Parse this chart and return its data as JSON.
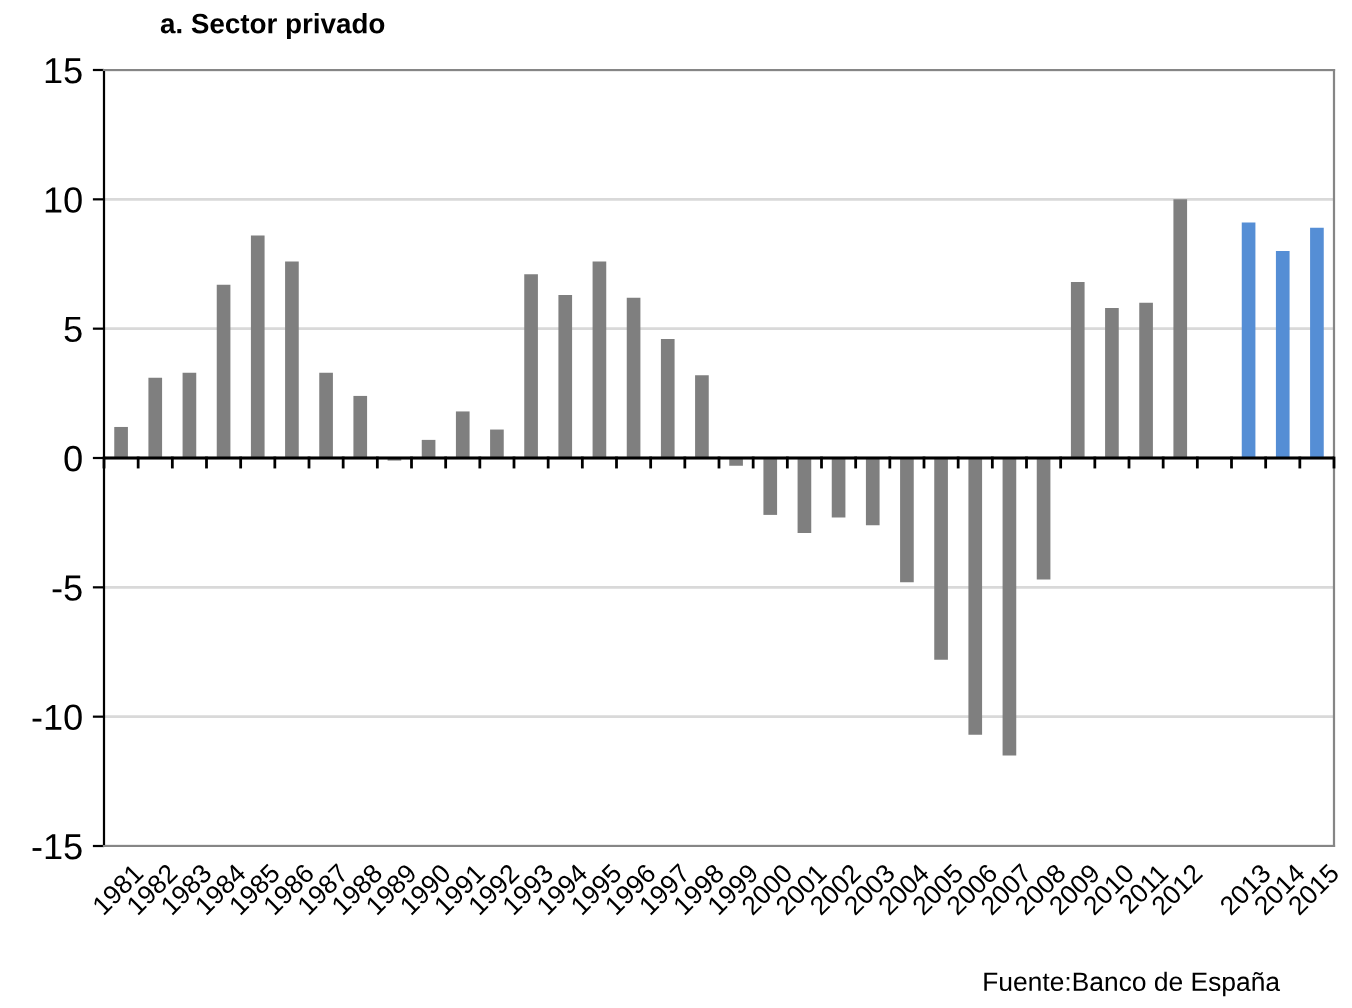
{
  "chart_data": {
    "type": "bar",
    "title": "a. Sector privado",
    "categories": [
      "1981",
      "1982",
      "1983",
      "1984",
      "1985",
      "1986",
      "1987",
      "1988",
      "1989",
      "1990",
      "1991",
      "1992",
      "1993",
      "1994",
      "1995",
      "1996",
      "1997",
      "1998",
      "1999",
      "2000",
      "2001",
      "2002",
      "2003",
      "2004",
      "2005",
      "2006",
      "2007",
      "2008",
      "2009",
      "2010",
      "2011",
      "2012",
      null,
      "2013",
      "2014",
      "2015"
    ],
    "values": [
      1.2,
      3.1,
      3.3,
      6.7,
      8.6,
      7.6,
      3.3,
      2.4,
      -0.1,
      0.7,
      1.8,
      1.1,
      7.1,
      6.3,
      7.6,
      6.2,
      4.6,
      3.2,
      -0.3,
      -2.2,
      -2.9,
      -2.3,
      -2.6,
      -4.8,
      -7.8,
      -10.7,
      -11.5,
      -4.7,
      6.8,
      5.8,
      6.0,
      10.0,
      null,
      9.1,
      8.0,
      8.9
    ],
    "colors": [
      "#7f7f7f",
      "#7f7f7f",
      "#7f7f7f",
      "#7f7f7f",
      "#7f7f7f",
      "#7f7f7f",
      "#7f7f7f",
      "#7f7f7f",
      "#7f7f7f",
      "#7f7f7f",
      "#7f7f7f",
      "#7f7f7f",
      "#7f7f7f",
      "#7f7f7f",
      "#7f7f7f",
      "#7f7f7f",
      "#7f7f7f",
      "#7f7f7f",
      "#7f7f7f",
      "#7f7f7f",
      "#7f7f7f",
      "#7f7f7f",
      "#7f7f7f",
      "#7f7f7f",
      "#7f7f7f",
      "#7f7f7f",
      "#7f7f7f",
      "#7f7f7f",
      "#7f7f7f",
      "#7f7f7f",
      "#7f7f7f",
      "#7f7f7f",
      "#7f7f7f",
      "#558ed5",
      "#558ed5",
      "#558ed5"
    ],
    "ylim": [
      -15,
      15
    ],
    "yticks": [
      -15,
      -10,
      -5,
      0,
      5,
      10,
      15
    ],
    "grid": "y",
    "legend": false,
    "annotations": [
      "Fuente:Banco de España"
    ]
  }
}
